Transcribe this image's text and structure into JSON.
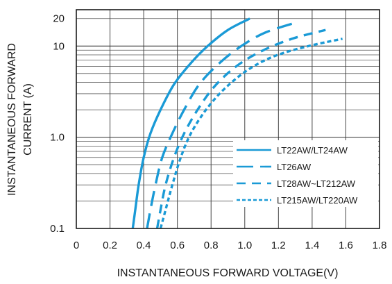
{
  "chart_data": {
    "type": "line",
    "xlabel": "INSTANTANEOUS FORWARD VOLTAGE(V)",
    "ylabel_lines": [
      "INSTANTANEOUS FORWARD",
      "CURRENT (A)"
    ],
    "xlim": [
      0,
      1.8
    ],
    "ylim": [
      0.1,
      25
    ],
    "yscale": "log",
    "x_ticks": [
      {
        "value": 0,
        "label": "0"
      },
      {
        "value": 0.2,
        "label": "0.2"
      },
      {
        "value": 0.4,
        "label": "0.4"
      },
      {
        "value": 0.6,
        "label": "0.6"
      },
      {
        "value": 0.8,
        "label": "0.8"
      },
      {
        "value": 1.0,
        "label": "1.0"
      },
      {
        "value": 1.2,
        "label": "1.2"
      },
      {
        "value": 1.4,
        "label": "1.4"
      },
      {
        "value": 1.6,
        "label": "1.6"
      },
      {
        "value": 1.8,
        "label": "1.8"
      }
    ],
    "y_ticks": [
      {
        "value": 0.1,
        "label": "0.1"
      },
      {
        "value": 1,
        "label": "1.0"
      },
      {
        "value": 10,
        "label": "10"
      },
      {
        "value": 20,
        "label": "20"
      }
    ],
    "grid": true,
    "legend_position": "bottom-right",
    "color": "#1a9ad6",
    "series": [
      {
        "name": "LT22AW/LT24AW",
        "style": "solid",
        "points": [
          [
            0.335,
            0.1
          ],
          [
            0.35,
            0.16
          ],
          [
            0.37,
            0.3
          ],
          [
            0.4,
            0.6
          ],
          [
            0.44,
            1.1
          ],
          [
            0.5,
            2.0
          ],
          [
            0.58,
            3.8
          ],
          [
            0.68,
            6.5
          ],
          [
            0.78,
            10
          ],
          [
            0.9,
            15
          ],
          [
            1.03,
            20
          ]
        ]
      },
      {
        "name": "LT26AW",
        "style": "long-dash",
        "points": [
          [
            0.42,
            0.1
          ],
          [
            0.44,
            0.16
          ],
          [
            0.47,
            0.3
          ],
          [
            0.51,
            0.6
          ],
          [
            0.57,
            1.1
          ],
          [
            0.64,
            2.0
          ],
          [
            0.73,
            3.8
          ],
          [
            0.85,
            6.5
          ],
          [
            0.98,
            10
          ],
          [
            1.12,
            14
          ],
          [
            1.3,
            18
          ]
        ]
      },
      {
        "name": "LT28AW~LT212AW",
        "style": "medium-dash",
        "points": [
          [
            0.48,
            0.1
          ],
          [
            0.5,
            0.16
          ],
          [
            0.53,
            0.3
          ],
          [
            0.58,
            0.6
          ],
          [
            0.64,
            1.1
          ],
          [
            0.72,
            2.0
          ],
          [
            0.82,
            3.6
          ],
          [
            0.95,
            6.0
          ],
          [
            1.1,
            8.8
          ],
          [
            1.28,
            12
          ],
          [
            1.48,
            15
          ]
        ]
      },
      {
        "name": "LT215AW/LT220AW",
        "style": "short-dash",
        "points": [
          [
            0.5,
            0.1
          ],
          [
            0.53,
            0.16
          ],
          [
            0.57,
            0.3
          ],
          [
            0.62,
            0.6
          ],
          [
            0.68,
            1.1
          ],
          [
            0.77,
            2.0
          ],
          [
            0.88,
            3.4
          ],
          [
            1.02,
            5.5
          ],
          [
            1.18,
            7.8
          ],
          [
            1.38,
            10
          ],
          [
            1.58,
            12
          ]
        ]
      }
    ]
  }
}
